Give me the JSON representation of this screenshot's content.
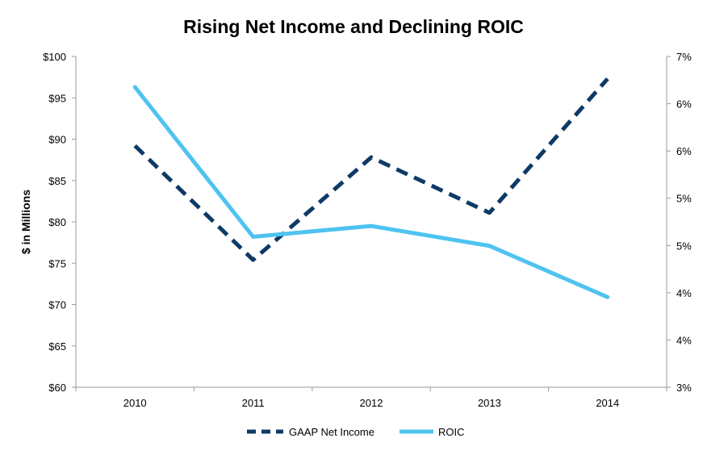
{
  "chart_data": {
    "type": "line",
    "title": "Rising Net Income and Declining ROIC",
    "ylabel": "$ in Millions",
    "y2label": "",
    "categories": [
      "2010",
      "2011",
      "2012",
      "2013",
      "2014"
    ],
    "ylim": [
      60,
      100
    ],
    "y_ticks": [
      "$60",
      "$65",
      "$70",
      "$75",
      "$80",
      "$85",
      "$90",
      "$95",
      "$100"
    ],
    "y2lim": [
      3,
      7
    ],
    "y2_ticks": [
      "3%",
      "4%",
      "4%",
      "5%",
      "5%",
      "6%",
      "6%",
      "7%"
    ],
    "series": [
      {
        "name": "GAAP Net Income",
        "axis": "left",
        "style": "dashed",
        "color": "#0f3a66",
        "values": [
          89.2,
          75.4,
          87.8,
          81.1,
          97.3
        ]
      },
      {
        "name": "ROIC",
        "axis": "right",
        "style": "solid",
        "color": "#4fc3f0",
        "values": [
          6.63,
          4.82,
          4.95,
          4.71,
          4.09
        ]
      }
    ],
    "grid": false,
    "legend": "bottom"
  }
}
